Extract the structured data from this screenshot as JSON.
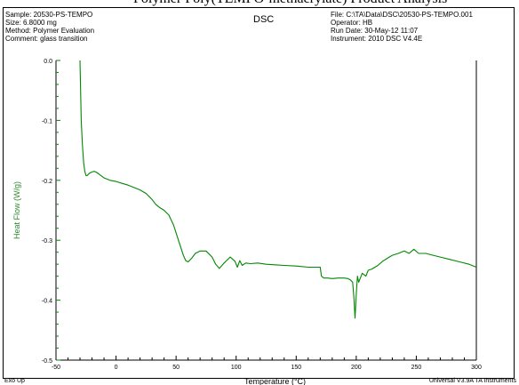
{
  "clipped_top_text": "Polymer Poly(TEMPO-methacrylate) Product Analysis",
  "header": {
    "sample": "Sample: 20530-PS-TEMPO",
    "size": "Size:  6.8000 mg",
    "method": "Method: Polymer Evaluation",
    "comment": "Comment: glass transition",
    "title": "DSC",
    "file": "File: C:\\TA\\Data\\DSC\\20530-PS-TEMPO.001",
    "operator": "Operator: HB",
    "run_date": "Run Date: 30-May-12 11:07",
    "instrument": "Instrument: 2010 DSC V4.4E"
  },
  "footer": {
    "exo": "Exo Up",
    "software": "Universal V3.9A TA Instruments"
  },
  "colors": {
    "curve": "#008800",
    "axis": "#000000",
    "ylabel": "#2e8b2e",
    "tick": "#008800"
  },
  "chart_data": {
    "type": "line",
    "title": "DSC",
    "xlabel": "Temperature (°C)",
    "ylabel": "Heat Flow (W/g)",
    "xlim": [
      -50,
      300
    ],
    "ylim": [
      -0.5,
      0.0
    ],
    "xticks": [
      -50,
      0,
      50,
      100,
      150,
      200,
      250,
      300
    ],
    "yticks": [
      0.0,
      -0.1,
      -0.2,
      -0.3,
      -0.4,
      -0.5
    ],
    "xtick_labels": [
      "-50",
      "0",
      "50",
      "100",
      "150",
      "200",
      "250",
      "300"
    ],
    "ytick_labels": [
      "0.0",
      "-0.1",
      "-0.2",
      "-0.3",
      "-0.4",
      "-0.5"
    ],
    "grid": false,
    "series": [
      {
        "x": [
          -30,
          -29.5,
          -29,
          -28,
          -27,
          -26,
          -25,
          -24,
          -22,
          -20,
          -18,
          -16,
          -14,
          -12,
          -10,
          -5,
          0,
          5,
          10,
          15,
          20,
          25,
          30,
          33,
          36,
          40,
          44,
          48,
          52,
          56,
          58,
          60,
          63,
          66,
          70,
          75,
          80,
          83,
          86,
          90,
          95,
          99,
          101,
          103,
          105,
          108,
          112,
          118,
          125,
          132,
          140,
          150,
          160,
          166,
          170,
          171,
          173,
          176,
          180,
          185,
          190,
          193,
          195,
          197,
          198,
          199,
          200,
          201,
          202,
          205,
          208,
          210,
          213,
          218,
          222,
          226,
          230,
          235,
          240,
          244,
          248,
          252,
          258,
          264,
          270,
          278,
          286,
          294,
          300
        ],
        "y": [
          0.0,
          -0.05,
          -0.1,
          -0.14,
          -0.17,
          -0.185,
          -0.192,
          -0.192,
          -0.188,
          -0.186,
          -0.185,
          -0.187,
          -0.19,
          -0.193,
          -0.196,
          -0.2,
          -0.202,
          -0.205,
          -0.208,
          -0.212,
          -0.216,
          -0.222,
          -0.232,
          -0.24,
          -0.245,
          -0.25,
          -0.258,
          -0.275,
          -0.3,
          -0.325,
          -0.334,
          -0.336,
          -0.33,
          -0.322,
          -0.318,
          -0.318,
          -0.328,
          -0.34,
          -0.347,
          -0.338,
          -0.328,
          -0.335,
          -0.345,
          -0.334,
          -0.342,
          -0.338,
          -0.339,
          -0.338,
          -0.34,
          -0.341,
          -0.342,
          -0.343,
          -0.345,
          -0.345,
          -0.345,
          -0.36,
          -0.363,
          -0.363,
          -0.364,
          -0.363,
          -0.363,
          -0.364,
          -0.366,
          -0.37,
          -0.395,
          -0.43,
          -0.39,
          -0.36,
          -0.37,
          -0.355,
          -0.36,
          -0.35,
          -0.348,
          -0.342,
          -0.335,
          -0.33,
          -0.325,
          -0.322,
          -0.318,
          -0.322,
          -0.315,
          -0.322,
          -0.322,
          -0.325,
          -0.328,
          -0.332,
          -0.336,
          -0.34,
          -0.345
        ]
      }
    ]
  }
}
